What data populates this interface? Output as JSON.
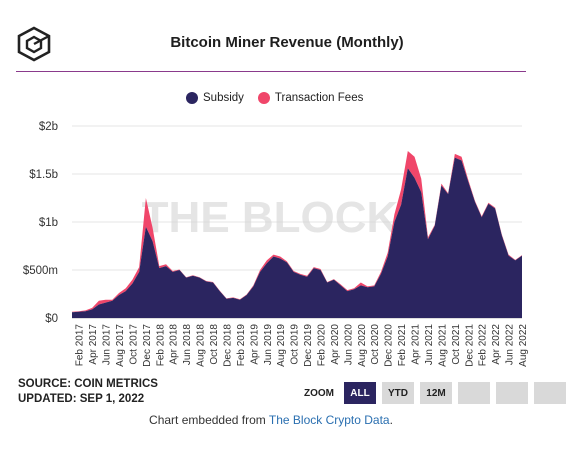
{
  "title": "Bitcoin Miner Revenue (Monthly)",
  "watermark": "THE BLOCK",
  "legend": [
    {
      "name": "Subsidy",
      "color": "#2b2560"
    },
    {
      "name": "Transaction Fees",
      "color": "#f0466a"
    }
  ],
  "source_line": "SOURCE: COIN METRICS",
  "updated_line": "UPDATED: SEP 1, 2022",
  "zoom": {
    "label": "ZOOM",
    "buttons": [
      "ALL",
      "YTD",
      "12M",
      "",
      "",
      ""
    ],
    "active": "ALL"
  },
  "embed": {
    "prefix": "Chart embedded from ",
    "link": "The Block Crypto Data",
    "suffix": "."
  },
  "chart_data": {
    "type": "area",
    "stacked": true,
    "title": "Bitcoin Miner Revenue (Monthly)",
    "ylim": [
      0,
      2000000000
    ],
    "y_ticks": [
      0,
      500000000,
      1000000000,
      1500000000,
      2000000000
    ],
    "y_tick_labels": [
      "$0",
      "$500m",
      "$1b",
      "$1.5b",
      "$2b"
    ],
    "x_tick_labels": [
      "Feb 2017",
      "Apr 2017",
      "Jun 2017",
      "Aug 2017",
      "Oct 2017",
      "Dec 2017",
      "Feb 2018",
      "Apr 2018",
      "Jun 2018",
      "Aug 2018",
      "Oct 2018",
      "Dec 2018",
      "Feb 2019",
      "Apr 2019",
      "Jun 2019",
      "Aug 2019",
      "Oct 2019",
      "Dec 2019",
      "Feb 2020",
      "Apr 2020",
      "Jun 2020",
      "Aug 2020",
      "Oct 2020",
      "Dec 2020",
      "Feb 2021",
      "Apr 2021",
      "Jun 2021",
      "Aug 2021",
      "Oct 2021",
      "Dec 2021",
      "Feb 2022",
      "Apr 2022",
      "Jun 2022",
      "Aug 2022"
    ],
    "x": [
      "Jan 2017",
      "Feb 2017",
      "Mar 2017",
      "Apr 2017",
      "May 2017",
      "Jun 2017",
      "Jul 2017",
      "Aug 2017",
      "Sep 2017",
      "Oct 2017",
      "Nov 2017",
      "Dec 2017",
      "Jan 2018",
      "Feb 2018",
      "Mar 2018",
      "Apr 2018",
      "May 2018",
      "Jun 2018",
      "Jul 2018",
      "Aug 2018",
      "Sep 2018",
      "Oct 2018",
      "Nov 2018",
      "Dec 2018",
      "Jan 2019",
      "Feb 2019",
      "Mar 2019",
      "Apr 2019",
      "May 2019",
      "Jun 2019",
      "Jul 2019",
      "Aug 2019",
      "Sep 2019",
      "Oct 2019",
      "Nov 2019",
      "Dec 2019",
      "Jan 2020",
      "Feb 2020",
      "Mar 2020",
      "Apr 2020",
      "May 2020",
      "Jun 2020",
      "Jul 2020",
      "Aug 2020",
      "Sep 2020",
      "Oct 2020",
      "Nov 2020",
      "Dec 2020",
      "Jan 2021",
      "Feb 2021",
      "Mar 2021",
      "Apr 2021",
      "May 2021",
      "Jun 2021",
      "Jul 2021",
      "Aug 2021",
      "Sep 2021",
      "Oct 2021",
      "Nov 2021",
      "Dec 2021",
      "Jan 2022",
      "Feb 2022",
      "Mar 2022",
      "Apr 2022",
      "May 2022",
      "Jun 2022",
      "Jul 2022",
      "Aug 2022"
    ],
    "series": [
      {
        "name": "Subsidy",
        "color": "#2b2560",
        "values": [
          60,
          65,
          70,
          90,
          140,
          160,
          180,
          240,
          280,
          360,
          480,
          950,
          800,
          520,
          540,
          480,
          500,
          420,
          440,
          420,
          380,
          370,
          280,
          200,
          210,
          190,
          240,
          330,
          480,
          570,
          640,
          620,
          580,
          480,
          450,
          430,
          520,
          500,
          370,
          400,
          340,
          280,
          300,
          340,
          320,
          330,
          460,
          640,
          1000,
          1180,
          1560,
          1460,
          1310,
          820,
          960,
          1380,
          1290,
          1670,
          1640,
          1420,
          1210,
          1050,
          1190,
          1140,
          860,
          650,
          600,
          650
        ]
      },
      {
        "name": "Transaction Fees",
        "color": "#f0466a",
        "values": [
          5,
          5,
          10,
          15,
          40,
          30,
          10,
          20,
          30,
          40,
          50,
          300,
          140,
          20,
          20,
          10,
          5,
          5,
          5,
          5,
          5,
          5,
          5,
          5,
          5,
          5,
          5,
          10,
          20,
          30,
          20,
          20,
          10,
          10,
          10,
          10,
          10,
          10,
          5,
          5,
          10,
          10,
          10,
          30,
          10,
          10,
          20,
          40,
          80,
          160,
          180,
          220,
          140,
          20,
          10,
          20,
          10,
          40,
          40,
          20,
          10,
          10,
          10,
          10,
          10,
          10,
          5,
          5
        ]
      }
    ],
    "value_units": "millions USD",
    "grid": true
  }
}
